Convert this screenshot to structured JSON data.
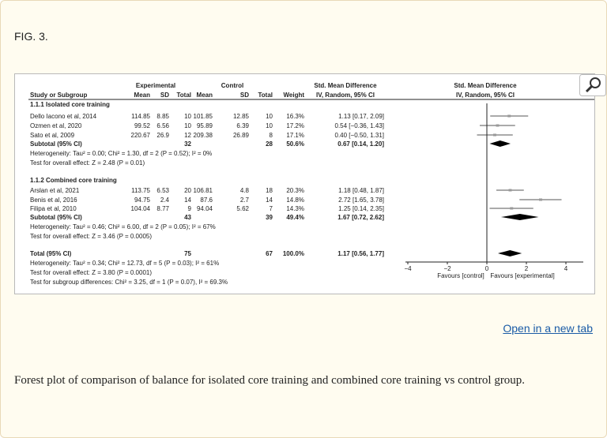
{
  "figure": {
    "label": "FIG. 3.",
    "open_link": "Open in a new tab",
    "caption": "Forest plot of comparison of balance for isolated core training and combined core training vs control group."
  },
  "forest_plot": {
    "header": {
      "group1": "Experimental",
      "group2": "Control",
      "smd_left": "Std. Mean Difference",
      "method_left": "IV, Random, 95% CI",
      "smd_right": "Std. Mean Difference",
      "method_right": "IV, Random, 95% CI",
      "col_study": "Study or Subgroup",
      "col_mean": "Mean",
      "col_sd": "SD",
      "col_total": "Total",
      "col_mean2": "Mean",
      "col_sd2": "SD",
      "col_total2": "Total",
      "col_weight": "Weight"
    },
    "subgroups": [
      {
        "title": "1.1.1 Isolated core training",
        "studies": [
          {
            "name": "Dello Iacono et al, 2014",
            "m1": "114.85",
            "sd1": "8.85",
            "n1": "10",
            "m2": "101.85",
            "sd2": "12.85",
            "n2": "10",
            "w": "16.3%",
            "ci": "1.13 [0.17, 2.09]",
            "est": 1.13,
            "lo": 0.17,
            "hi": 2.09
          },
          {
            "name": "Ozmen et al, 2020",
            "m1": "99.52",
            "sd1": "6.56",
            "n1": "10",
            "m2": "95.89",
            "sd2": "6.39",
            "n2": "10",
            "w": "17.2%",
            "ci": "0.54 [−0.36, 1.43]",
            "est": 0.54,
            "lo": -0.36,
            "hi": 1.43
          },
          {
            "name": "Sato et al, 2009",
            "m1": "220.67",
            "sd1": "26.9",
            "n1": "12",
            "m2": "209.38",
            "sd2": "26.89",
            "n2": "8",
            "w": "17.1%",
            "ci": "0.40 [−0.50, 1.31]",
            "est": 0.4,
            "lo": -0.5,
            "hi": 1.31
          }
        ],
        "subtotal": {
          "label": "Subtotal (95% CI)",
          "n1": "32",
          "n2": "28",
          "w": "50.6%",
          "ci": "0.67 [0.14, 1.20]",
          "est": 0.67,
          "lo": 0.14,
          "hi": 1.2
        },
        "het": "Heterogeneity: Tau² = 0.00; Chi² = 1.30, df = 2 (P = 0.52); I² = 0%",
        "test": "Test for overall effect: Z = 2.48 (P = 0.01)"
      },
      {
        "title": "1.1.2 Combined core training",
        "studies": [
          {
            "name": "Arslan et al, 2021",
            "m1": "113.75",
            "sd1": "6.53",
            "n1": "20",
            "m2": "106.81",
            "sd2": "4.8",
            "n2": "18",
            "w": "20.3%",
            "ci": "1.18 [0.48, 1.87]",
            "est": 1.18,
            "lo": 0.48,
            "hi": 1.87
          },
          {
            "name": "Benis et al, 2016",
            "m1": "94.75",
            "sd1": "2.4",
            "n1": "14",
            "m2": "87.6",
            "sd2": "2.7",
            "n2": "14",
            "w": "14.8%",
            "ci": "2.72 [1.65, 3.78]",
            "est": 2.72,
            "lo": 1.65,
            "hi": 3.78
          },
          {
            "name": "Filipa et al, 2010",
            "m1": "104.04",
            "sd1": "8.77",
            "n1": "9",
            "m2": "94.04",
            "sd2": "5.62",
            "n2": "7",
            "w": "14.3%",
            "ci": "1.25 [0.14, 2.35]",
            "est": 1.25,
            "lo": 0.14,
            "hi": 2.35
          }
        ],
        "subtotal": {
          "label": "Subtotal (95% CI)",
          "n1": "43",
          "n2": "39",
          "w": "49.4%",
          "ci": "1.67 [0.72, 2.62]",
          "est": 1.67,
          "lo": 0.72,
          "hi": 2.62
        },
        "het": "Heterogeneity: Tau² = 0.46; Chi² = 6.00, df = 2 (P = 0.05); I² = 67%",
        "test": "Test for overall effect: Z = 3.46 (P = 0.0005)"
      }
    ],
    "total": {
      "label": "Total (95% CI)",
      "n1": "75",
      "n2": "67",
      "w": "100.0%",
      "ci": "1.17 [0.56, 1.77]",
      "est": 1.17,
      "lo": 0.56,
      "hi": 1.77
    },
    "total_het": "Heterogeneity: Tau² = 0.34; Chi² = 12.73, df = 5 (P = 0.03); I² = 61%",
    "total_test": "Test for overall effect: Z = 3.80 (P = 0.0001)",
    "subgroup_test": "Test for subgroup differences: Chi² = 3.25, df = 1 (P = 0.07), I² = 69.3%",
    "axis": {
      "min": -4,
      "max": 4,
      "ticks": [
        "−4",
        "−2",
        "0",
        "2",
        "4"
      ],
      "tick_values": [
        -4,
        -2,
        0,
        2,
        4
      ]
    },
    "favours_left": "Favours [control]",
    "favours_right": "Favours [experimental]"
  },
  "chart_data": {
    "type": "forest",
    "x_range": [
      -4,
      4
    ],
    "rows": [
      {
        "label": "Dello Iacono et al, 2014",
        "est": 1.13,
        "lo": 0.17,
        "hi": 2.09
      },
      {
        "label": "Ozmen et al, 2020",
        "est": 0.54,
        "lo": -0.36,
        "hi": 1.43
      },
      {
        "label": "Sato et al, 2009",
        "est": 0.4,
        "lo": -0.5,
        "hi": 1.31
      },
      {
        "label": "Subtotal isolated",
        "est": 0.67,
        "lo": 0.14,
        "hi": 1.2
      },
      {
        "label": "Arslan et al, 2021",
        "est": 1.18,
        "lo": 0.48,
        "hi": 1.87
      },
      {
        "label": "Benis et al, 2016",
        "est": 2.72,
        "lo": 1.65,
        "hi": 3.78
      },
      {
        "label": "Filipa et al, 2010",
        "est": 1.25,
        "lo": 0.14,
        "hi": 2.35
      },
      {
        "label": "Subtotal combined",
        "est": 1.67,
        "lo": 0.72,
        "hi": 2.62
      },
      {
        "label": "Total",
        "est": 1.17,
        "lo": 0.56,
        "hi": 1.77
      }
    ]
  }
}
